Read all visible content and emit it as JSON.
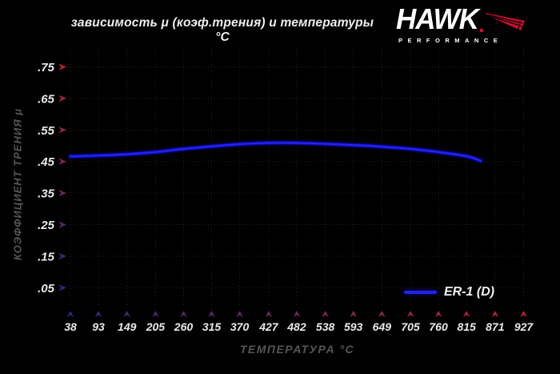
{
  "header": {
    "title": "зависимость μ (коэф.трения) и температуры °C"
  },
  "logo": {
    "brand": "HAWK",
    "subtitle": "PERFORMANCE",
    "wing_color": "#c8102e"
  },
  "chart_data": {
    "type": "line",
    "title": "зависимость μ (коэф.трения) и температуры °C",
    "xlabel": "ТЕМПЕРАТУРА °C",
    "ylabel": "КОЭФФИЦИЕНТ ТРЕНИЯ μ",
    "x_ticks": [
      38,
      93,
      149,
      205,
      260,
      315,
      370,
      427,
      482,
      538,
      593,
      649,
      705,
      760,
      815,
      871,
      927
    ],
    "y_ticks": [
      0.75,
      0.65,
      0.55,
      0.45,
      0.35,
      0.25,
      0.15,
      0.05
    ],
    "y_tick_labels": [
      ".75",
      ".65",
      ".55",
      ".45",
      ".35",
      ".25",
      ".15",
      ".05"
    ],
    "xlim": [
      38,
      927
    ],
    "ylim": [
      0,
      0.8
    ],
    "grid": "dotted",
    "legend_position": "bottom-right",
    "series": [
      {
        "name": "ER-1 (D)",
        "color": "#2323ee",
        "points": [
          [
            38,
            0.466
          ],
          [
            93,
            0.469
          ],
          [
            149,
            0.473
          ],
          [
            205,
            0.48
          ],
          [
            260,
            0.49
          ],
          [
            315,
            0.498
          ],
          [
            370,
            0.505
          ],
          [
            427,
            0.509
          ],
          [
            482,
            0.509
          ],
          [
            538,
            0.506
          ],
          [
            593,
            0.502
          ],
          [
            649,
            0.497
          ],
          [
            705,
            0.49
          ],
          [
            760,
            0.48
          ],
          [
            815,
            0.467
          ],
          [
            843,
            0.452
          ]
        ]
      }
    ],
    "colors": {
      "background": "#000000",
      "grid": "#242424",
      "tick_label": "#e9e9e9",
      "axis_title": "#565656",
      "title": "#efefef",
      "axis_cool": "#2b2b8a",
      "axis_warm": "#c42031",
      "curve_glow": "#000088"
    }
  }
}
